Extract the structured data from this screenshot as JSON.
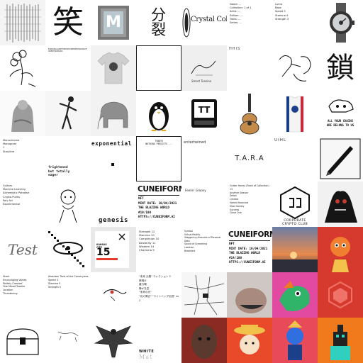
{
  "tiles": {
    "r0c1": {
      "glyph": "笑"
    },
    "r0c2": {
      "tile_letter": "M"
    },
    "r0c3": {
      "glyph_top": "分",
      "glyph_bottom": "裂"
    },
    "r0c4": {
      "title": "Crystal Collection"
    },
    "r0c5": {
      "lines": "Name: ...\nCollection: 1 of 1\nArtist: ...\nEdition: ...\nTraits: ...\nSeries: ..."
    },
    "r0c6": {
      "lines": "Luma\nBase\nSpeed 5\nStamina 4\nStrength 3"
    },
    "r1c0": {
      "caption": ""
    },
    "r1c1": {
      "lines": "EARRINGLANDFORMATIONENDEDWORLDFORESTNOMADS"
    },
    "r1c4": {
      "caption": "Smart Tension"
    },
    "r1c5": {
      "tag": "HHIS"
    },
    "r1c7": {
      "glyph": "鎖"
    },
    "r2c3": {
      "caption": ""
    },
    "r2c4": {
      "badge": "TT"
    },
    "r2c7": {
      "caption_1": "ALL YOUR CHAINS",
      "caption_2": "ARE BELONG TO US"
    },
    "r3c0": {
      "lines": "Monochrome\nMonogram\n1\nStoryline"
    },
    "r3c1": {
      "lines": "frightened\nbut totally\neager"
    },
    "r3c2": {
      "title": "exponential"
    },
    "r3c3": {
      "lines": "TWENTY\nNOTHING PERSISTS ..."
    },
    "r3c4": {
      "label": "entertwined"
    },
    "r3c5": {
      "title": "T.A.R.A"
    },
    "r3c6": {
      "tag": "UIHL"
    },
    "r3c7": {
      "caption": ""
    },
    "r4c0": {
      "lines": "Guitars\nMachine Learning\nAlchemistic Paradise\nCrypto-Punks\nPoly Art\nExperimental"
    },
    "r4c2": {
      "title": "genesis"
    },
    "r4c3": {
      "title": "CUNEIFORM",
      "lines": "NFT\nMINT DATE: 10/04/2021\nTHE BLAZING WORLD\n#10/100\nHTTPS://CUNEIFORM.AI"
    },
    "r4c4": {
      "label": "Feelin' Groovy"
    },
    "r4c5": {
      "lines": "Gutter Honey (Rank of Collection) 13\nAnother Season\nDetail\nLimited\nVaried Nuanced\nMost Variety\nSuccess\nClose One"
    },
    "r4c6": {
      "caption_1": "CORPORATE",
      "caption_2": "CRYPTO CLUB"
    },
    "r5c0": {
      "signature": "Test"
    },
    "r5c2": {
      "city": "KANSAS\nCITY",
      "number": "15"
    },
    "r5c3": {
      "lines": "Strength 12\nStamina 10\nComplexion 10\nDexterity 11\nWisdom 14\nCharisma 9"
    },
    "r5c4": {
      "lines": "Symbol\nVirtual Reality\nStaggering Amounts of Personal Data\nSound of Screaming\nLocation\nBreakfast"
    },
    "r5c5": {
      "title": "CUNEIFORM",
      "lines": "NFT\nMINT DATE: 10/04/2021\nTHE BLAZING WORLD\n#14/100\nHTTPS://CUNEIFORM.AI"
    },
    "r6c0": {
      "lines": "Stack\nEncouraging Values\nPolitely Cranked\nFine Mixed Toaster\nLocation\nThreatening"
    },
    "r6c1": {
      "lines": "Abandon Trust of the Countryless\nSpeed 3\nStamina 5\nStrength 5"
    },
    "r6c3": {
      "lines": "\"未来 元素\" コレクション 2\n夜明け\n重力場\n静かな空\n\"未来の光\"\n\"光の周辺\" \"ライトニング伝説\" vs 2"
    },
    "r7c3": {
      "label": "WHITE",
      "sub": "Mat"
    }
  },
  "colors": {
    "kansas_accent": "#e23b2e",
    "sunset_sky": "#e88a4e",
    "red_tile": "#d63a2e",
    "blue_tile": "#2f6fe0",
    "orange_tile": "#f07a1c"
  }
}
